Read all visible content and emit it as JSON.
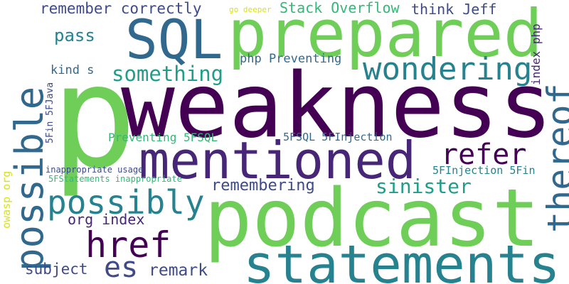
{
  "palette": {
    "background": "#ffffff",
    "deep_purple": "#440154",
    "purple": "#482677",
    "indigo": "#3e4a89",
    "slate_blue": "#31688e",
    "teal": "#26828e",
    "sea_green": "#1f9e89",
    "green": "#35b779",
    "light_green": "#6ece58",
    "yellow": "#d8e219"
  },
  "words": [
    {
      "text": "weakness"
    },
    {
      "text": "podcast"
    },
    {
      "text": "prepared"
    },
    {
      "text": "p"
    },
    {
      "text": "possible"
    },
    {
      "text": "mentioned"
    },
    {
      "text": "statements"
    },
    {
      "text": "SQL"
    },
    {
      "text": "wondering"
    },
    {
      "text": "thereof"
    },
    {
      "text": "possibly"
    },
    {
      "text": "href"
    },
    {
      "text": "es"
    },
    {
      "text": "refer"
    },
    {
      "text": "something"
    },
    {
      "text": "sinister"
    },
    {
      "text": "remembering"
    },
    {
      "text": "remark"
    },
    {
      "text": "subject"
    },
    {
      "text": "org index"
    },
    {
      "text": "pass"
    },
    {
      "text": "remember correctly"
    },
    {
      "text": "Stack Overflow"
    },
    {
      "text": "think Jeff"
    },
    {
      "text": "go deeper"
    },
    {
      "text": "php Preventing"
    },
    {
      "text": "kind s"
    },
    {
      "text": "index php"
    },
    {
      "text": "5Fin 5FJava"
    },
    {
      "text": "Preventing 5FSQL"
    },
    {
      "text": "5FSQL 5FInjection"
    },
    {
      "text": "owasp org"
    },
    {
      "text": "inappropriate usage"
    },
    {
      "text": "5FInjection 5Fin"
    },
    {
      "text": "5FStatements inappropriate"
    }
  ]
}
